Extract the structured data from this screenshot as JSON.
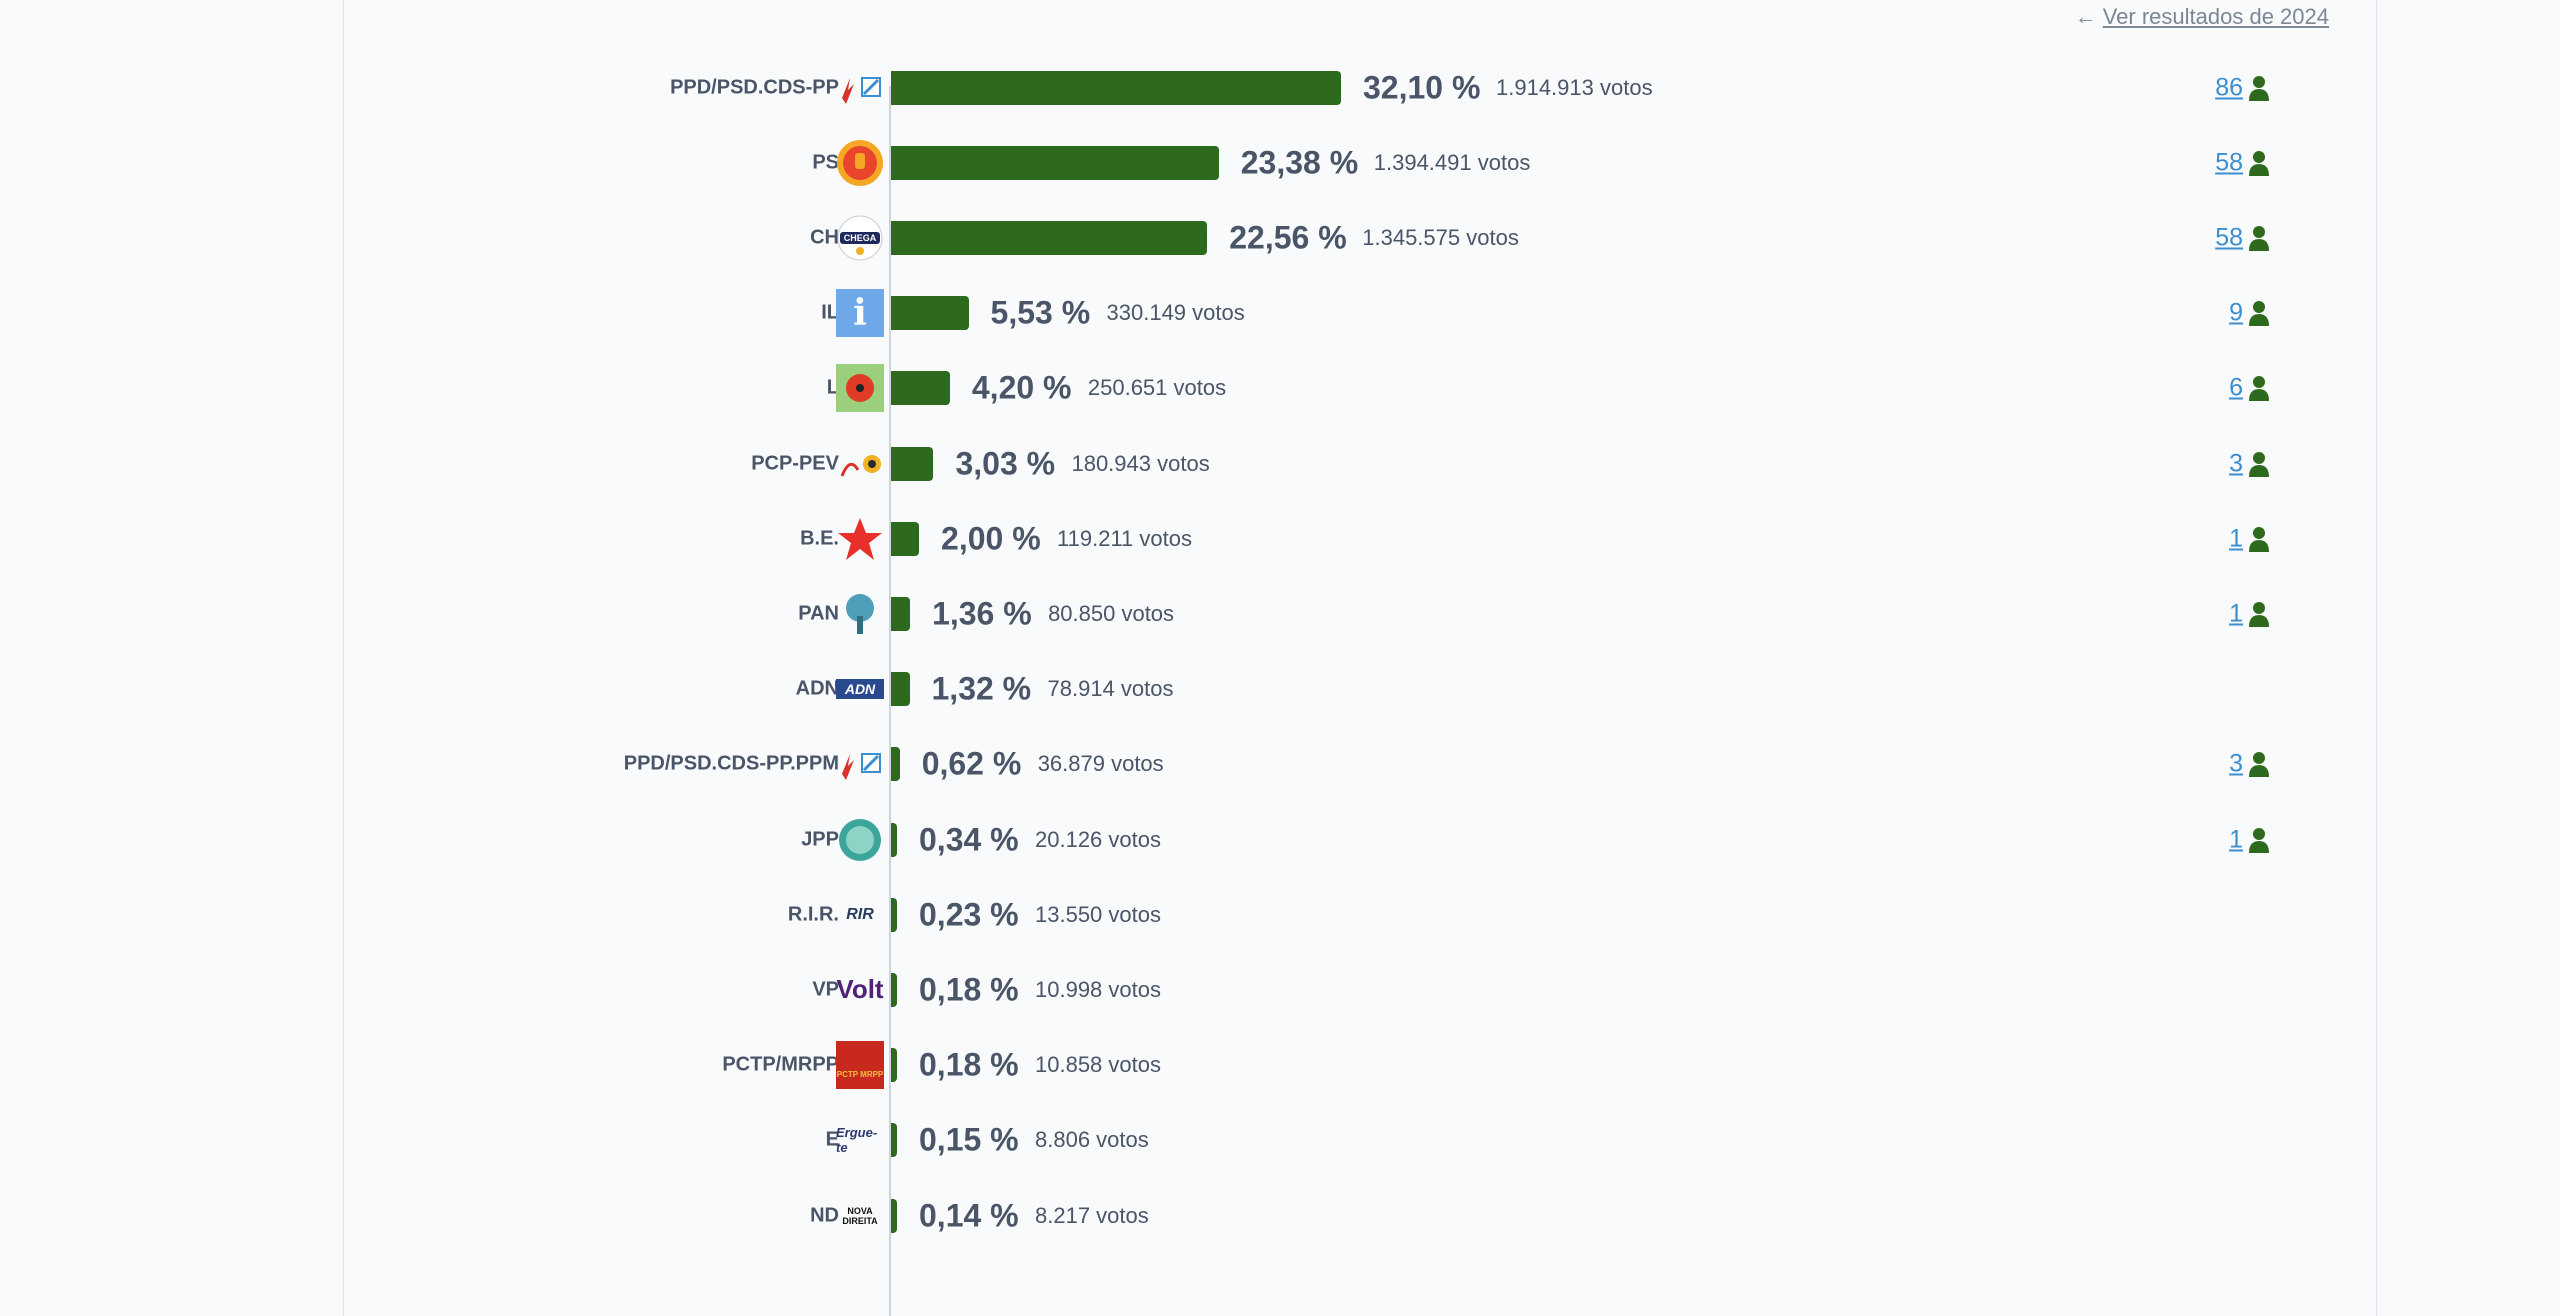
{
  "header": {
    "prev_results_label": "Ver resultados de 2024",
    "arrow_icon": "arrow-left-icon"
  },
  "colors": {
    "bar": "#2d6a1e",
    "seat_link": "#3b8fd0",
    "person_icon": "#2d6a1e"
  },
  "chart_data": {
    "type": "bar",
    "orientation": "horizontal",
    "categories": [
      "PPD/PSD.CDS-PP",
      "PS",
      "CH",
      "IL",
      "L",
      "PCP-PEV",
      "B.E.",
      "PAN",
      "ADN",
      "PPD/PSD.CDS-PP.PPM",
      "JPP",
      "R.I.R.",
      "VP",
      "PCTP/MRPP",
      "E",
      "ND"
    ],
    "values": [
      32.1,
      23.38,
      22.56,
      5.53,
      4.2,
      3.03,
      2.0,
      1.36,
      1.32,
      0.62,
      0.34,
      0.23,
      0.18,
      0.18,
      0.15,
      0.14
    ],
    "value_labels": [
      "32,10 %",
      "23,38 %",
      "22,56 %",
      "5,53 %",
      "4,20 %",
      "3,03 %",
      "2,00 %",
      "1,36 %",
      "1,32 %",
      "0,62 %",
      "0,34 %",
      "0,23 %",
      "0,18 %",
      "0,18 %",
      "0,15 %",
      "0,14 %"
    ],
    "votes": [
      1914913,
      1394491,
      1345575,
      330149,
      250651,
      180943,
      119211,
      80850,
      78914,
      36879,
      20126,
      13550,
      10998,
      10858,
      8806,
      8217
    ],
    "votes_labels": [
      "1.914.913 votos",
      "1.394.491 votos",
      "1.345.575 votos",
      "330.149 votos",
      "250.651 votos",
      "180.943 votos",
      "119.211 votos",
      "80.850 votos",
      "78.914 votos",
      "36.879 votos",
      "20.126 votos",
      "13.550 votos",
      "10.998 votos",
      "10.858 votos",
      "8.806 votos",
      "8.217 votos"
    ],
    "seats": [
      "86",
      "58",
      "58",
      "9",
      "6",
      "3",
      "1",
      "1",
      "",
      "3",
      "1",
      "",
      "",
      "",
      "",
      ""
    ],
    "logo_icons": [
      "ppd-psd-cds-logo-icon",
      "ps-fist-rose-logo-icon",
      "chega-logo-icon",
      "il-logo-icon",
      "livre-poppy-logo-icon",
      "pcp-pev-logo-icon",
      "be-star-logo-icon",
      "pan-tree-logo-icon",
      "adn-logo-icon",
      "ppd-psd-cds-ppm-logo-icon",
      "jpp-logo-icon",
      "rir-logo-icon",
      "volt-logo-icon",
      "pctp-mrpp-logo-icon",
      "ergue-te-logo-icon",
      "nova-direita-logo-icon"
    ],
    "logo_texts": [
      "",
      "",
      "CHEGA",
      "i",
      "",
      "",
      "",
      "",
      "ADN",
      "",
      "",
      "RIR",
      "Volt",
      "PCTP MRPP",
      "Ergue-te",
      "NOVA DIREITA"
    ],
    "grid": false
  }
}
